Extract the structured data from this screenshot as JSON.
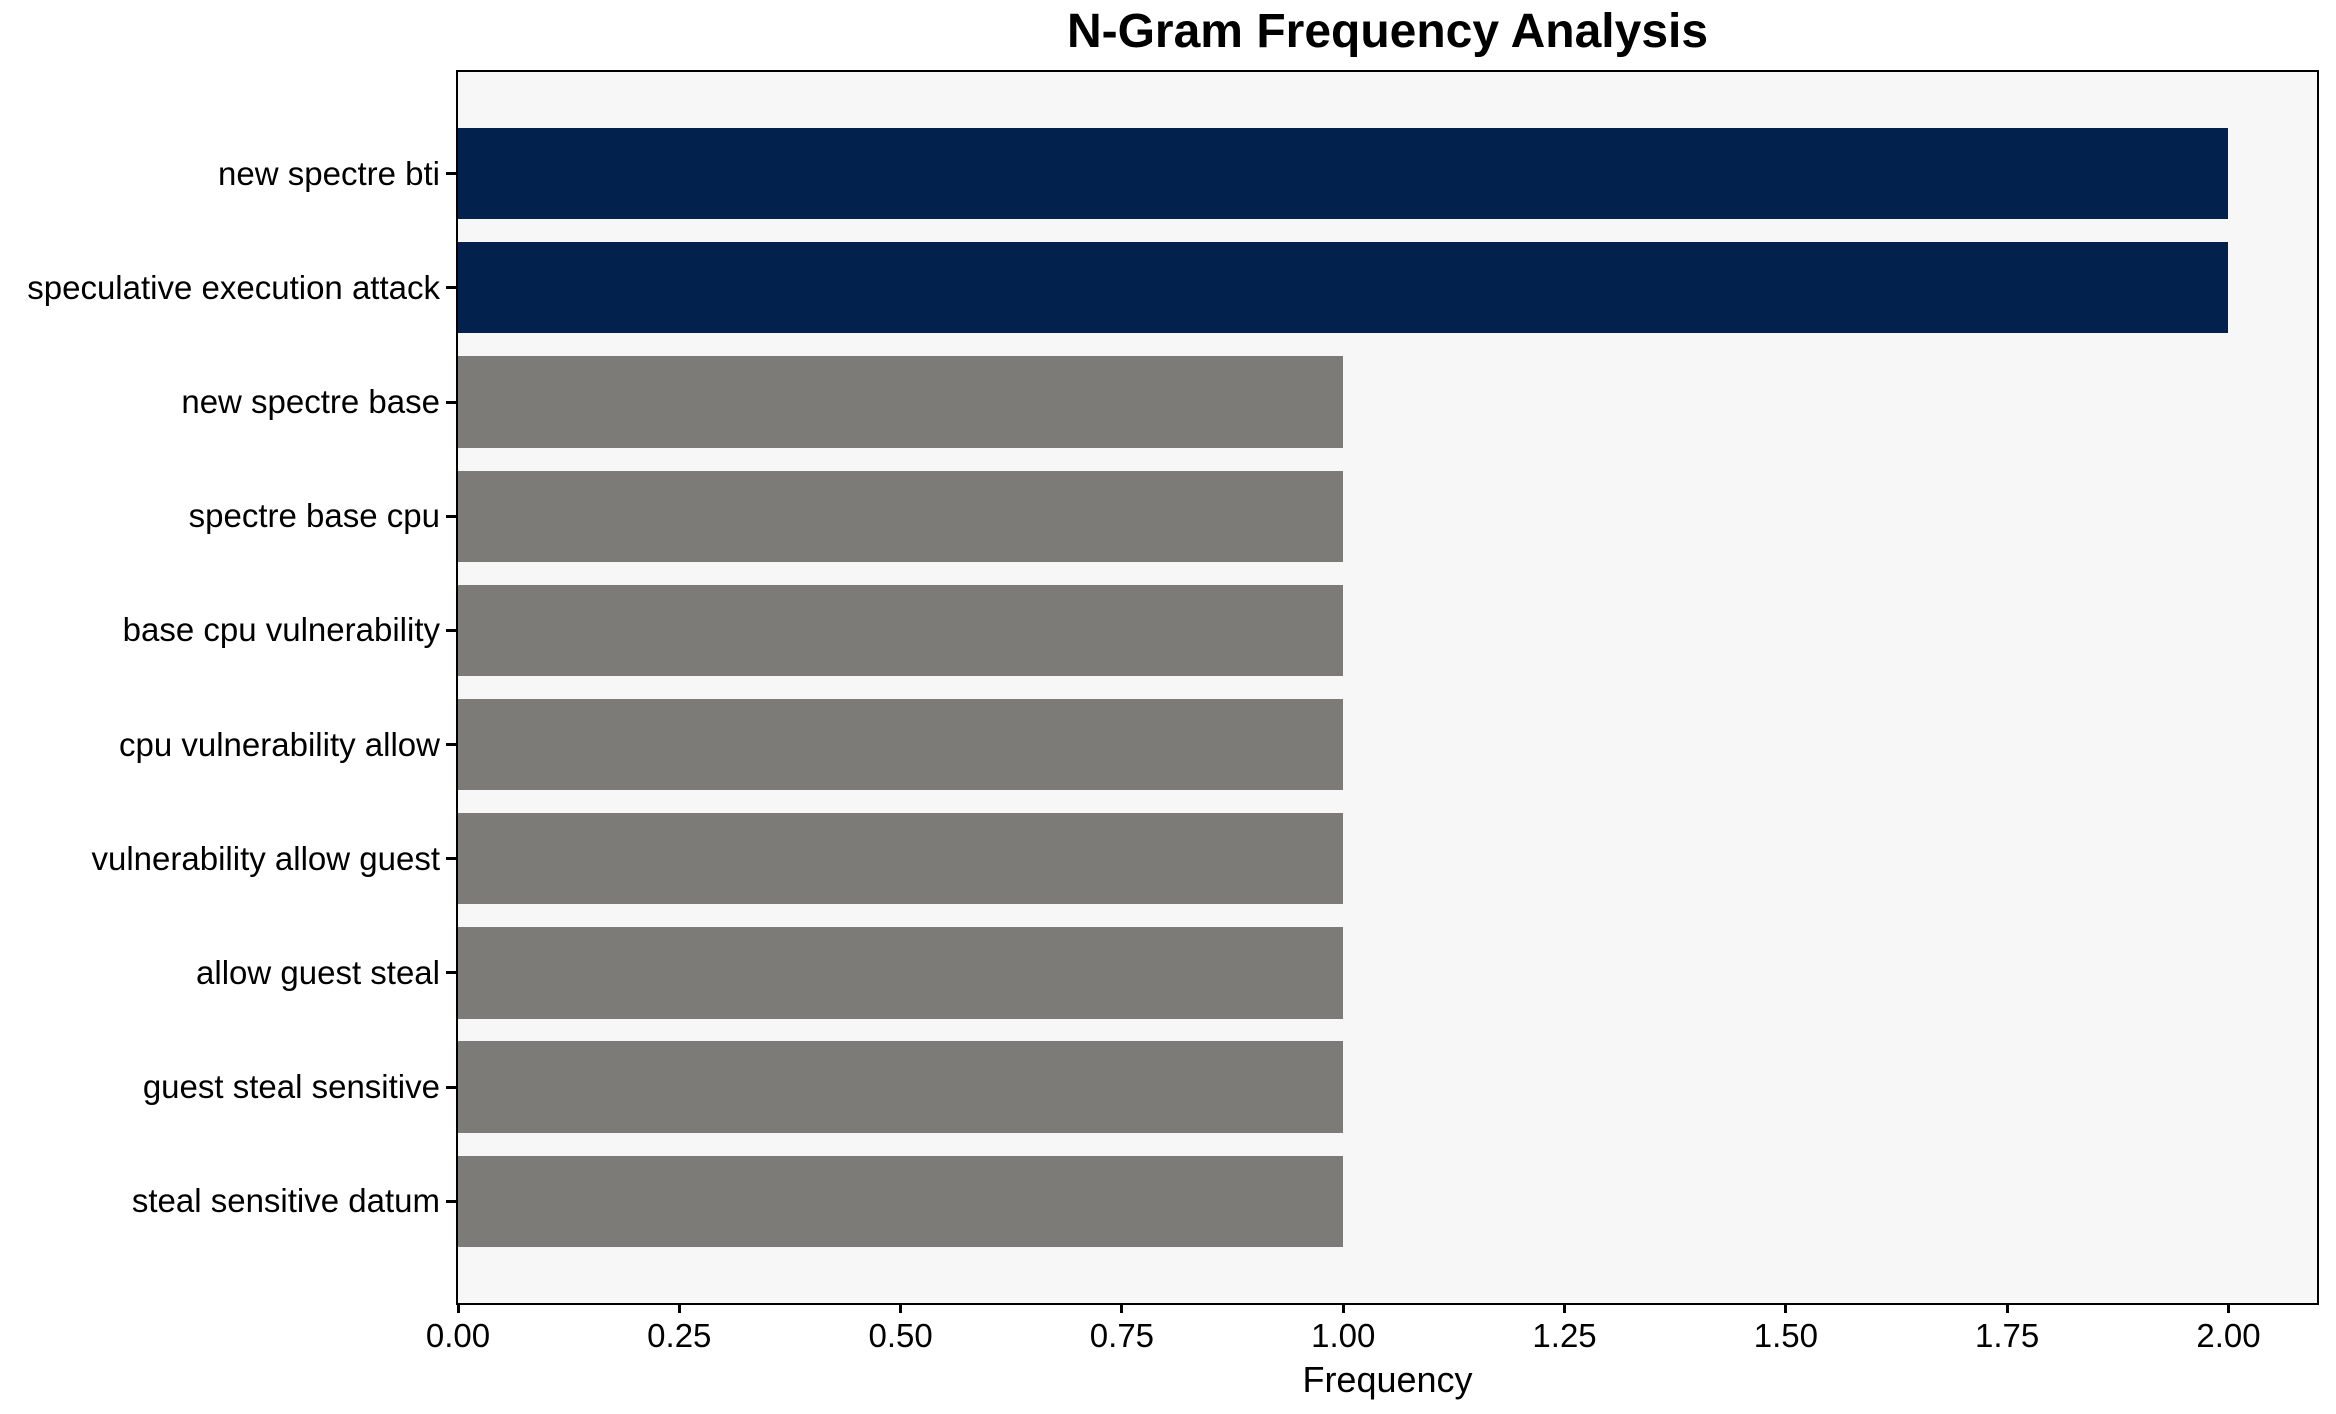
{
  "chart_data": {
    "type": "bar",
    "orientation": "horizontal",
    "title": "N-Gram Frequency Analysis",
    "xlabel": "Frequency",
    "ylabel": "",
    "categories": [
      "new spectre bti",
      "speculative execution attack",
      "new spectre base",
      "spectre base cpu",
      "base cpu vulnerability",
      "cpu vulnerability allow",
      "vulnerability allow guest",
      "allow guest steal",
      "guest steal sensitive",
      "steal sensitive datum"
    ],
    "values": [
      2,
      2,
      1,
      1,
      1,
      1,
      1,
      1,
      1,
      1
    ],
    "bar_colors": [
      "#02214c",
      "#02214c",
      "#7c7b77",
      "#7c7b77",
      "#7c7b77",
      "#7c7b77",
      "#7c7b77",
      "#7c7b77",
      "#7c7b77",
      "#7c7b77"
    ],
    "x_tick_labels": [
      "0.00",
      "0.25",
      "0.50",
      "0.75",
      "1.00",
      "1.25",
      "1.50",
      "1.75",
      "2.00"
    ],
    "x_tick_values": [
      0,
      0.25,
      0.5,
      0.75,
      1.0,
      1.25,
      1.5,
      1.75,
      2.0
    ],
    "xlim": [
      0,
      2.1
    ],
    "grid": false,
    "legend": null,
    "colors": {
      "highlight_bar": "#02214c",
      "default_bar": "#7c7b77",
      "plot_background": "#f7f7f7",
      "figure_background": "#ffffff",
      "spine": "#000000",
      "text": "#000000"
    }
  }
}
